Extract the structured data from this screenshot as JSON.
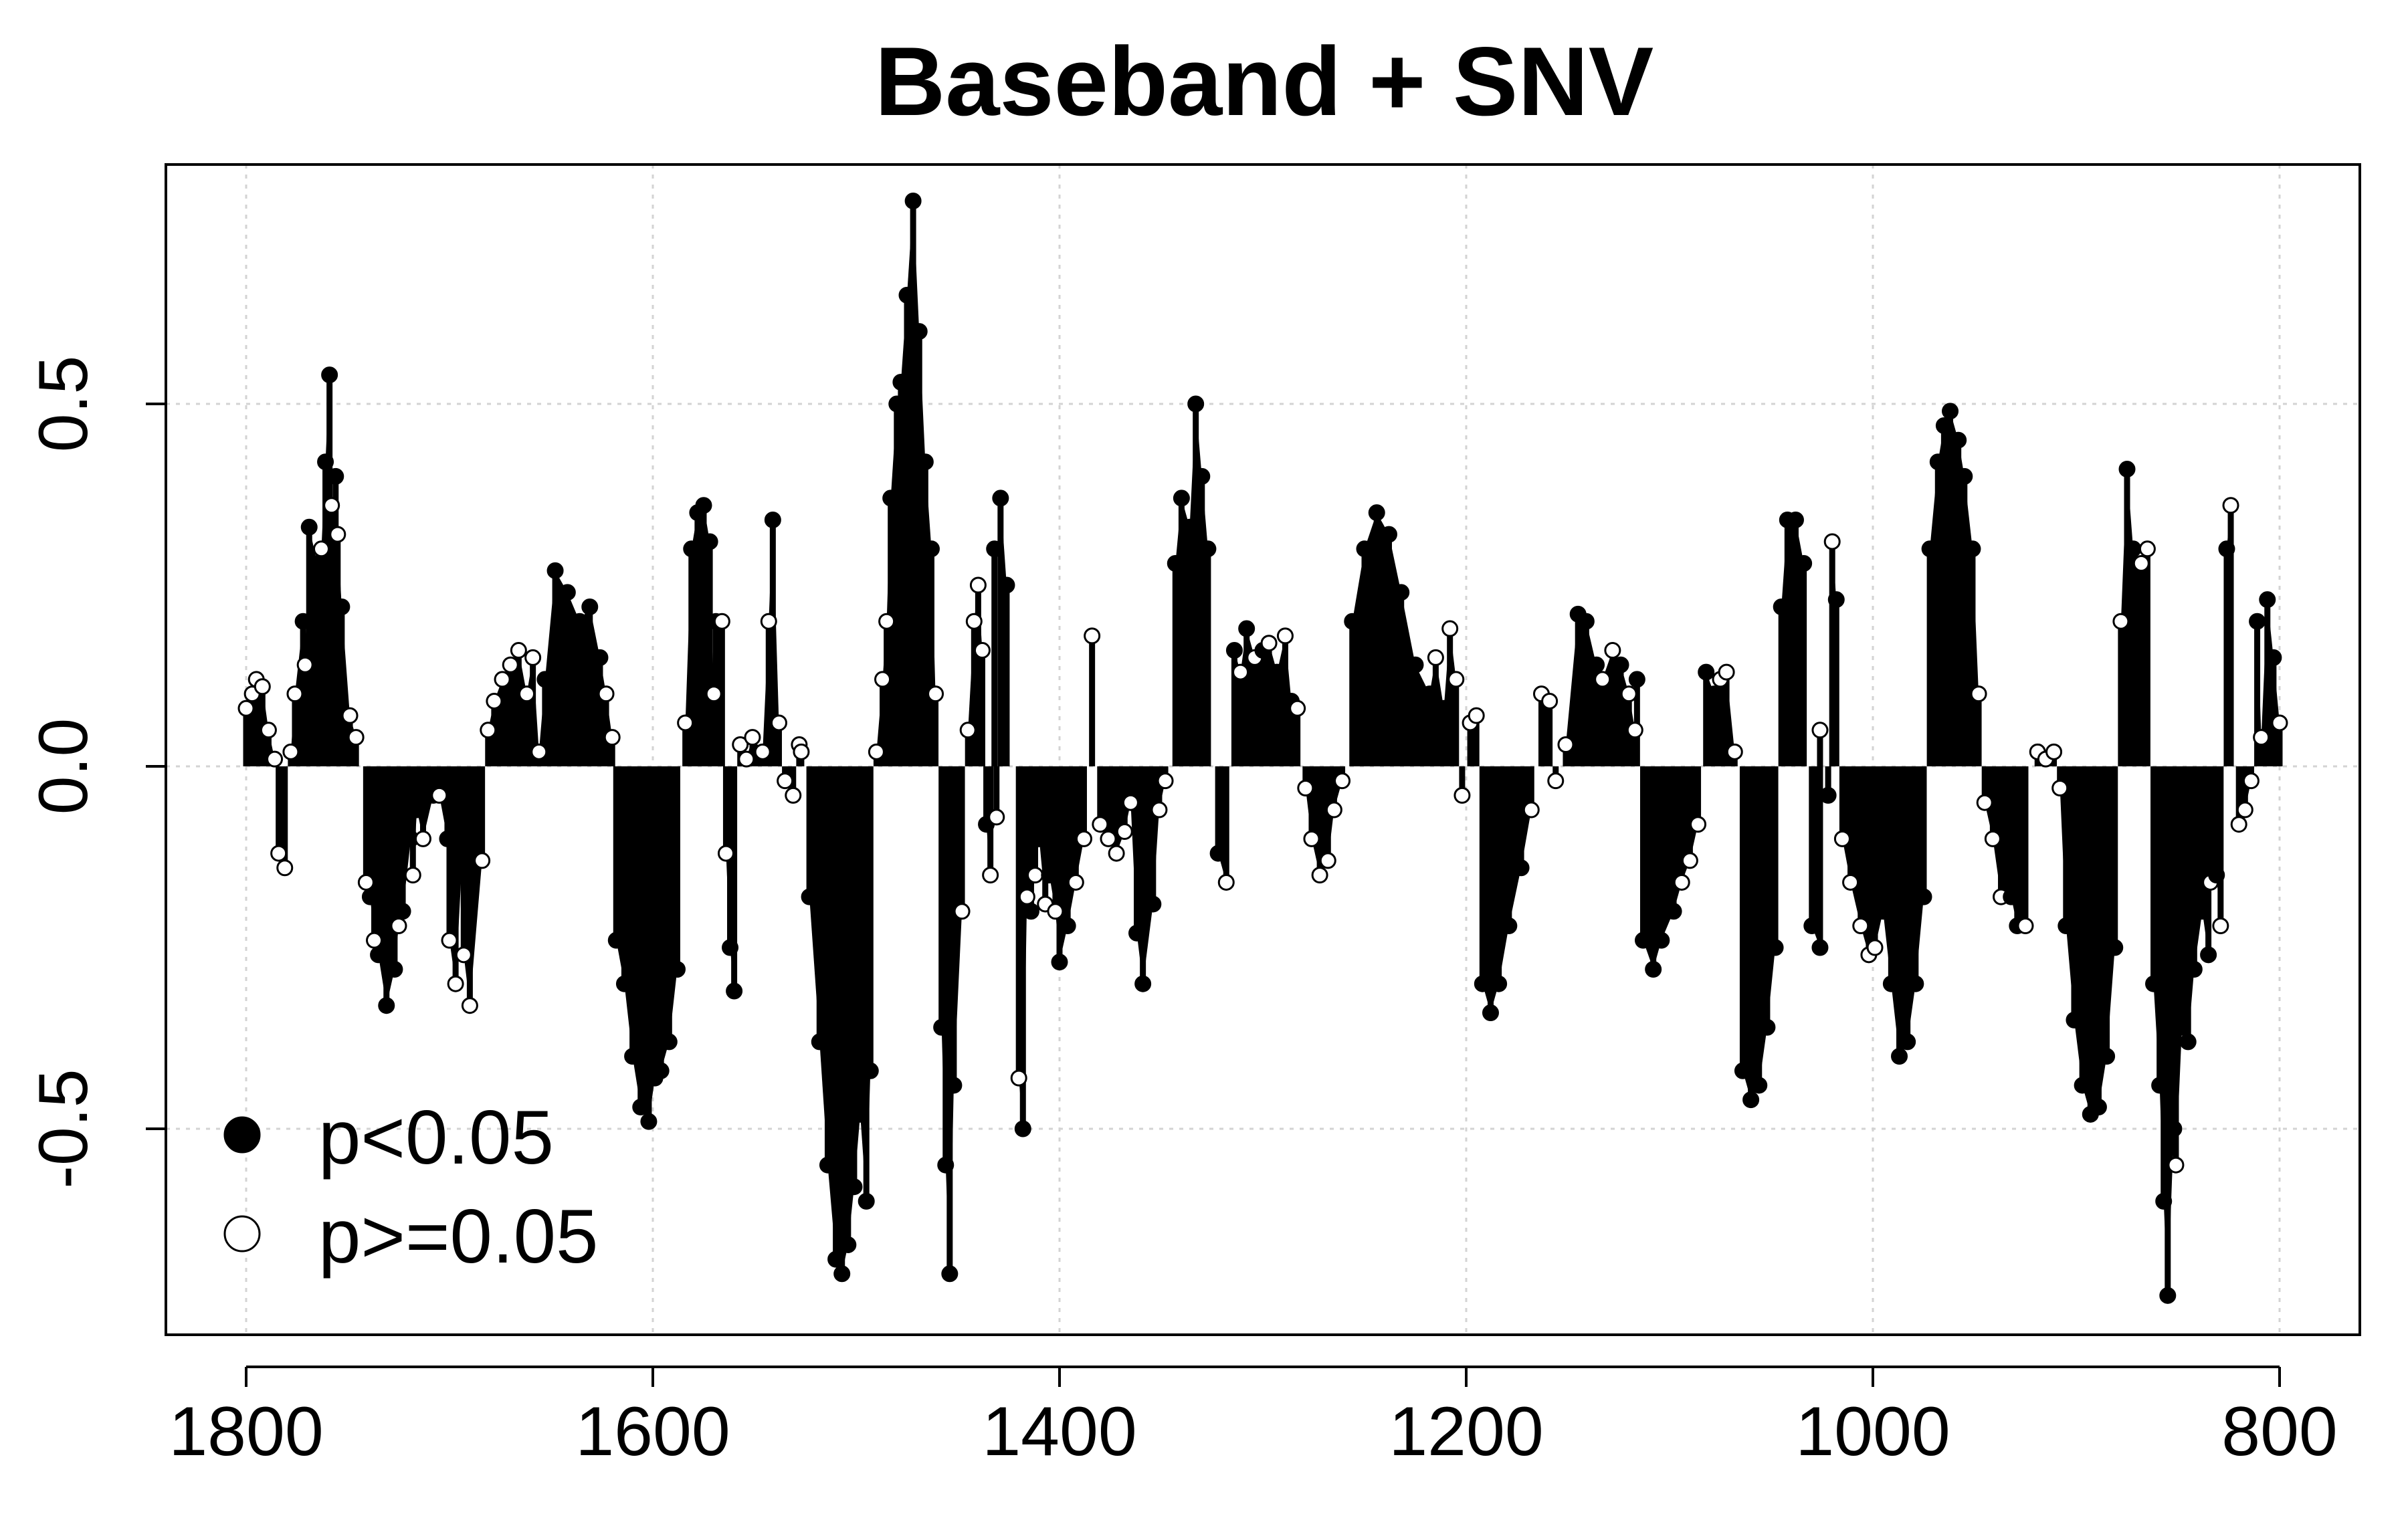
{
  "chart_data": {
    "type": "bar",
    "title": "Baseband + SNV",
    "xlabel": "",
    "ylabel": "",
    "xlim": [
      1800,
      800
    ],
    "x_reversed": true,
    "ylim": [
      -0.73,
      0.78
    ],
    "x_ticks": [
      "1800",
      "1600",
      "1400",
      "1200",
      "1000",
      "800"
    ],
    "y_ticks": [
      "-0.5",
      "0.0",
      "0.5"
    ],
    "grid": true,
    "legend_position": "bottom-left",
    "legend": [
      {
        "label": "p<0.05",
        "marker": "filled-circle"
      },
      {
        "label": "p>=0.05",
        "marker": "open-circle"
      }
    ],
    "series": [
      {
        "name": "p<0.05",
        "marker": "filled",
        "points": [
          [
            1772,
            0.2
          ],
          [
            1769,
            0.33
          ],
          [
            1765,
            0.28
          ],
          [
            1761,
            0.42
          ],
          [
            1759,
            0.54
          ],
          [
            1756,
            0.4
          ],
          [
            1753,
            0.22
          ],
          [
            1739,
            -0.18
          ],
          [
            1735,
            -0.26
          ],
          [
            1731,
            -0.33
          ],
          [
            1727,
            -0.28
          ],
          [
            1723,
            -0.2
          ],
          [
            1719,
            -0.1
          ],
          [
            1716,
            -0.06
          ],
          [
            1708,
            -0.04
          ],
          [
            1701,
            -0.1
          ],
          [
            1694,
            -0.14
          ],
          [
            1653,
            0.12
          ],
          [
            1648,
            0.27
          ],
          [
            1642,
            0.24
          ],
          [
            1636,
            0.2
          ],
          [
            1631,
            0.22
          ],
          [
            1626,
            0.15
          ],
          [
            1618,
            -0.24
          ],
          [
            1614,
            -0.3
          ],
          [
            1610,
            -0.4
          ],
          [
            1606,
            -0.47
          ],
          [
            1602,
            -0.49
          ],
          [
            1599,
            -0.43
          ],
          [
            1596,
            -0.42
          ],
          [
            1592,
            -0.38
          ],
          [
            1588,
            -0.28
          ],
          [
            1581,
            0.3
          ],
          [
            1578,
            0.35
          ],
          [
            1575,
            0.36
          ],
          [
            1572,
            0.31
          ],
          [
            1569,
            0.2
          ],
          [
            1562,
            -0.25
          ],
          [
            1560,
            -0.31
          ],
          [
            1541,
            0.34
          ],
          [
            1523,
            -0.18
          ],
          [
            1518,
            -0.38
          ],
          [
            1514,
            -0.55
          ],
          [
            1510,
            -0.68
          ],
          [
            1507,
            -0.7
          ],
          [
            1504,
            -0.66
          ],
          [
            1501,
            -0.58
          ],
          [
            1498,
            -0.48
          ],
          [
            1495,
            -0.6
          ],
          [
            1493,
            -0.42
          ],
          [
            1483,
            0.37
          ],
          [
            1480,
            0.5
          ],
          [
            1478,
            0.53
          ],
          [
            1475,
            0.65
          ],
          [
            1472,
            0.78
          ],
          [
            1469,
            0.6
          ],
          [
            1466,
            0.42
          ],
          [
            1463,
            0.3
          ],
          [
            1458,
            -0.36
          ],
          [
            1456,
            -0.55
          ],
          [
            1454,
            -0.7
          ],
          [
            1452,
            -0.44
          ],
          [
            1436,
            -0.08
          ],
          [
            1432,
            0.3
          ],
          [
            1429,
            0.37
          ],
          [
            1426,
            0.25
          ],
          [
            1418,
            -0.5
          ],
          [
            1414,
            -0.2
          ],
          [
            1410,
            -0.1
          ],
          [
            1405,
            -0.15
          ],
          [
            1400,
            -0.27
          ],
          [
            1396,
            -0.22
          ],
          [
            1362,
            -0.23
          ],
          [
            1359,
            -0.3
          ],
          [
            1354,
            -0.19
          ],
          [
            1343,
            0.28
          ],
          [
            1340,
            0.37
          ],
          [
            1336,
            0.33
          ],
          [
            1333,
            0.5
          ],
          [
            1330,
            0.4
          ],
          [
            1327,
            0.3
          ],
          [
            1322,
            -0.12
          ],
          [
            1314,
            0.16
          ],
          [
            1308,
            0.19
          ],
          [
            1300,
            0.16
          ],
          [
            1293,
            0.13
          ],
          [
            1286,
            0.09
          ],
          [
            1256,
            0.2
          ],
          [
            1250,
            0.3
          ],
          [
            1244,
            0.35
          ],
          [
            1238,
            0.32
          ],
          [
            1232,
            0.24
          ],
          [
            1225,
            0.14
          ],
          [
            1218,
            0.1
          ],
          [
            1211,
            0.08
          ],
          [
            1192,
            -0.3
          ],
          [
            1188,
            -0.34
          ],
          [
            1184,
            -0.3
          ],
          [
            1179,
            -0.22
          ],
          [
            1173,
            -0.14
          ],
          [
            1145,
            0.21
          ],
          [
            1141,
            0.2
          ],
          [
            1136,
            0.14
          ],
          [
            1124,
            0.14
          ],
          [
            1116,
            0.12
          ],
          [
            1113,
            -0.24
          ],
          [
            1108,
            -0.28
          ],
          [
            1104,
            -0.24
          ],
          [
            1098,
            -0.2
          ],
          [
            1082,
            0.13
          ],
          [
            1078,
            0.1
          ],
          [
            1064,
            -0.42
          ],
          [
            1060,
            -0.46
          ],
          [
            1056,
            -0.44
          ],
          [
            1052,
            -0.36
          ],
          [
            1048,
            -0.25
          ],
          [
            1045,
            0.22
          ],
          [
            1042,
            0.34
          ],
          [
            1038,
            0.34
          ],
          [
            1034,
            0.28
          ],
          [
            1030,
            -0.22
          ],
          [
            1026,
            -0.25
          ],
          [
            1022,
            -0.04
          ],
          [
            1018,
            0.23
          ],
          [
            995,
            -0.2
          ],
          [
            991,
            -0.3
          ],
          [
            987,
            -0.4
          ],
          [
            983,
            -0.38
          ],
          [
            979,
            -0.3
          ],
          [
            975,
            -0.18
          ],
          [
            972,
            0.3
          ],
          [
            968,
            0.42
          ],
          [
            965,
            0.47
          ],
          [
            962,
            0.49
          ],
          [
            958,
            0.45
          ],
          [
            955,
            0.4
          ],
          [
            951,
            0.3
          ],
          [
            932,
            -0.18
          ],
          [
            929,
            -0.22
          ],
          [
            905,
            -0.22
          ],
          [
            901,
            -0.35
          ],
          [
            897,
            -0.44
          ],
          [
            893,
            -0.48
          ],
          [
            889,
            -0.47
          ],
          [
            885,
            -0.4
          ],
          [
            881,
            -0.25
          ],
          [
            875,
            0.41
          ],
          [
            872,
            0.3
          ],
          [
            862,
            -0.3
          ],
          [
            859,
            -0.44
          ],
          [
            857,
            -0.6
          ],
          [
            855,
            -0.73
          ],
          [
            852,
            -0.5
          ],
          [
            848,
            -0.36
          ],
          [
            845,
            -0.38
          ],
          [
            842,
            -0.28
          ],
          [
            838,
            -0.2
          ],
          [
            835,
            -0.26
          ],
          [
            831,
            -0.15
          ],
          [
            826,
            0.3
          ],
          [
            811,
            0.2
          ],
          [
            806,
            0.23
          ],
          [
            803,
            0.15
          ]
        ]
      },
      {
        "name": "p>=0.05",
        "marker": "open",
        "points": [
          [
            1800,
            0.08
          ],
          [
            1797,
            0.1
          ],
          [
            1795,
            0.12
          ],
          [
            1792,
            0.11
          ],
          [
            1789,
            0.05
          ],
          [
            1786,
            0.01
          ],
          [
            1784,
            -0.12
          ],
          [
            1781,
            -0.14
          ],
          [
            1778,
            0.02
          ],
          [
            1776,
            0.1
          ],
          [
            1771,
            0.14
          ],
          [
            1763,
            0.3
          ],
          [
            1758,
            0.36
          ],
          [
            1755,
            0.32
          ],
          [
            1749,
            0.07
          ],
          [
            1746,
            0.04
          ],
          [
            1741,
            -0.16
          ],
          [
            1737,
            -0.24
          ],
          [
            1725,
            -0.22
          ],
          [
            1718,
            -0.15
          ],
          [
            1713,
            -0.1
          ],
          [
            1705,
            -0.04
          ],
          [
            1700,
            -0.24
          ],
          [
            1697,
            -0.3
          ],
          [
            1693,
            -0.26
          ],
          [
            1690,
            -0.33
          ],
          [
            1684,
            -0.13
          ],
          [
            1681,
            0.05
          ],
          [
            1678,
            0.09
          ],
          [
            1674,
            0.12
          ],
          [
            1670,
            0.14
          ],
          [
            1666,
            0.16
          ],
          [
            1662,
            0.1
          ],
          [
            1659,
            0.15
          ],
          [
            1656,
            0.02
          ],
          [
            1623,
            0.1
          ],
          [
            1620,
            0.04
          ],
          [
            1584,
            0.06
          ],
          [
            1570,
            0.1
          ],
          [
            1566,
            0.2
          ],
          [
            1564,
            -0.12
          ],
          [
            1557,
            0.03
          ],
          [
            1554,
            0.01
          ],
          [
            1551,
            0.04
          ],
          [
            1546,
            0.02
          ],
          [
            1543,
            0.2
          ],
          [
            1538,
            0.06
          ],
          [
            1535,
            -0.02
          ],
          [
            1531,
            -0.04
          ],
          [
            1528,
            0.03
          ],
          [
            1527,
            0.02
          ],
          [
            1490,
            0.02
          ],
          [
            1487,
            0.12
          ],
          [
            1485,
            0.2
          ],
          [
            1461,
            0.1
          ],
          [
            1448,
            -0.2
          ],
          [
            1445,
            0.05
          ],
          [
            1442,
            0.2
          ],
          [
            1440,
            0.25
          ],
          [
            1438,
            0.16
          ],
          [
            1434,
            -0.15
          ],
          [
            1431,
            -0.07
          ],
          [
            1420,
            -0.43
          ],
          [
            1416,
            -0.18
          ],
          [
            1412,
            -0.15
          ],
          [
            1407,
            -0.19
          ],
          [
            1402,
            -0.2
          ],
          [
            1392,
            -0.16
          ],
          [
            1388,
            -0.1
          ],
          [
            1384,
            0.18
          ],
          [
            1380,
            -0.08
          ],
          [
            1376,
            -0.1
          ],
          [
            1372,
            -0.12
          ],
          [
            1368,
            -0.09
          ],
          [
            1365,
            -0.05
          ],
          [
            1351,
            -0.06
          ],
          [
            1348,
            -0.02
          ],
          [
            1318,
            -0.16
          ],
          [
            1311,
            0.13
          ],
          [
            1304,
            0.15
          ],
          [
            1297,
            0.17
          ],
          [
            1289,
            0.18
          ],
          [
            1283,
            0.08
          ],
          [
            1279,
            -0.03
          ],
          [
            1276,
            -0.1
          ],
          [
            1272,
            -0.15
          ],
          [
            1268,
            -0.13
          ],
          [
            1265,
            -0.06
          ],
          [
            1261,
            -0.02
          ],
          [
            1215,
            0.15
          ],
          [
            1208,
            0.19
          ],
          [
            1205,
            0.12
          ],
          [
            1202,
            -0.04
          ],
          [
            1198,
            0.06
          ],
          [
            1195,
            0.07
          ],
          [
            1168,
            -0.06
          ],
          [
            1163,
            0.1
          ],
          [
            1159,
            0.09
          ],
          [
            1156,
            -0.02
          ],
          [
            1151,
            0.03
          ],
          [
            1133,
            0.12
          ],
          [
            1128,
            0.16
          ],
          [
            1120,
            0.1
          ],
          [
            1117,
            0.05
          ],
          [
            1094,
            -0.16
          ],
          [
            1090,
            -0.13
          ],
          [
            1086,
            -0.08
          ],
          [
            1075,
            0.12
          ],
          [
            1072,
            0.13
          ],
          [
            1068,
            0.02
          ],
          [
            1026,
            0.05
          ],
          [
            1020,
            0.31
          ],
          [
            1015,
            -0.1
          ],
          [
            1011,
            -0.16
          ],
          [
            1006,
            -0.22
          ],
          [
            1002,
            -0.26
          ],
          [
            999,
            -0.25
          ],
          [
            948,
            0.1
          ],
          [
            945,
            -0.05
          ],
          [
            941,
            -0.1
          ],
          [
            937,
            -0.18
          ],
          [
            925,
            -0.22
          ],
          [
            919,
            0.02
          ],
          [
            915,
            0.01
          ],
          [
            911,
            0.02
          ],
          [
            908,
            -0.03
          ],
          [
            878,
            0.2
          ],
          [
            868,
            0.28
          ],
          [
            865,
            0.3
          ],
          [
            851,
            -0.55
          ],
          [
            834,
            -0.16
          ],
          [
            829,
            -0.22
          ],
          [
            824,
            0.36
          ],
          [
            820,
            -0.08
          ],
          [
            817,
            -0.06
          ],
          [
            814,
            -0.02
          ],
          [
            809,
            0.04
          ],
          [
            800,
            0.06
          ]
        ]
      }
    ]
  }
}
